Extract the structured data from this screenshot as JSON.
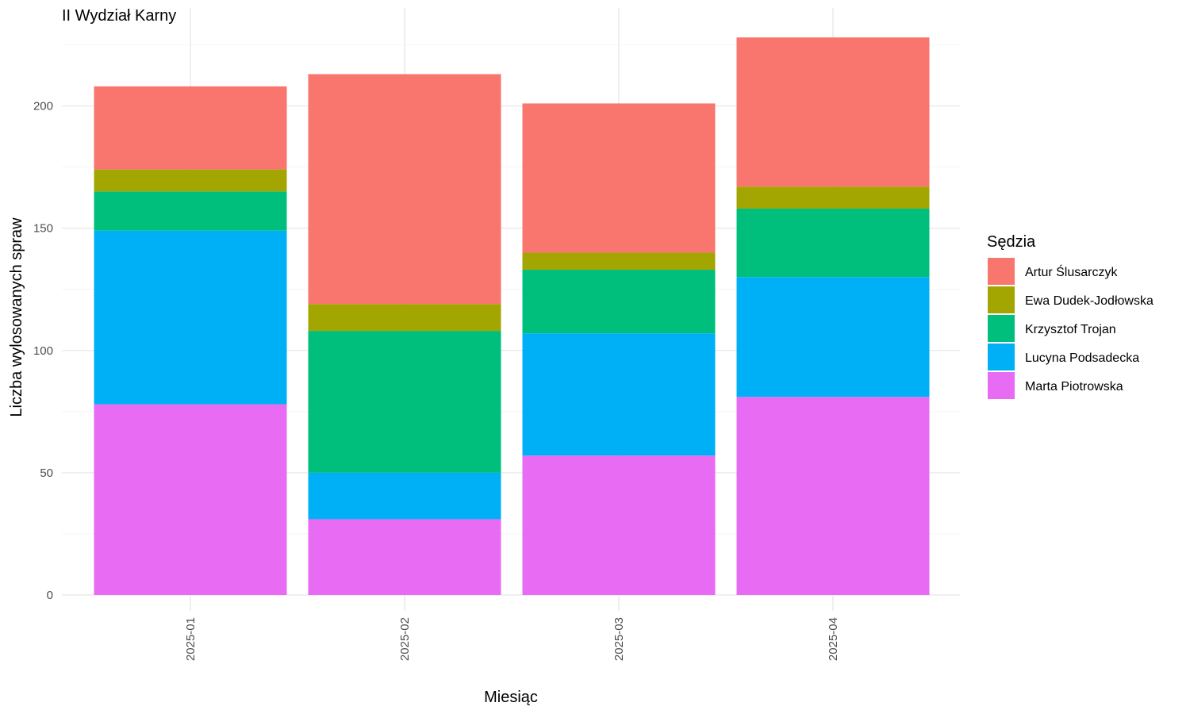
{
  "chart_data": {
    "type": "bar",
    "stacked": true,
    "title": "II Wydział Karny",
    "xlabel": "Miesiąc",
    "ylabel": "Liczba wylosowanych spraw",
    "categories": [
      "2025-01",
      "2025-02",
      "2025-03",
      "2025-04"
    ],
    "ylim": [
      0,
      230
    ],
    "yticks": [
      0,
      50,
      100,
      150,
      200
    ],
    "grid": true,
    "legend": {
      "title": "Sędzia",
      "position": "right"
    },
    "series": [
      {
        "name": "Marta Piotrowska",
        "color": "#E76BF3",
        "values": [
          78,
          31,
          57,
          81
        ]
      },
      {
        "name": "Lucyna Podsadecka",
        "color": "#00B0F6",
        "values": [
          71,
          19,
          50,
          49
        ]
      },
      {
        "name": "Krzysztof Trojan",
        "color": "#00BF7D",
        "values": [
          16,
          58,
          26,
          28
        ]
      },
      {
        "name": "Ewa Dudek-Jodłowska",
        "color": "#A3A500",
        "values": [
          9,
          11,
          7,
          9
        ]
      },
      {
        "name": "Artur Ślusarczyk",
        "color": "#F8766D",
        "values": [
          34,
          94,
          61,
          61
        ]
      }
    ]
  }
}
